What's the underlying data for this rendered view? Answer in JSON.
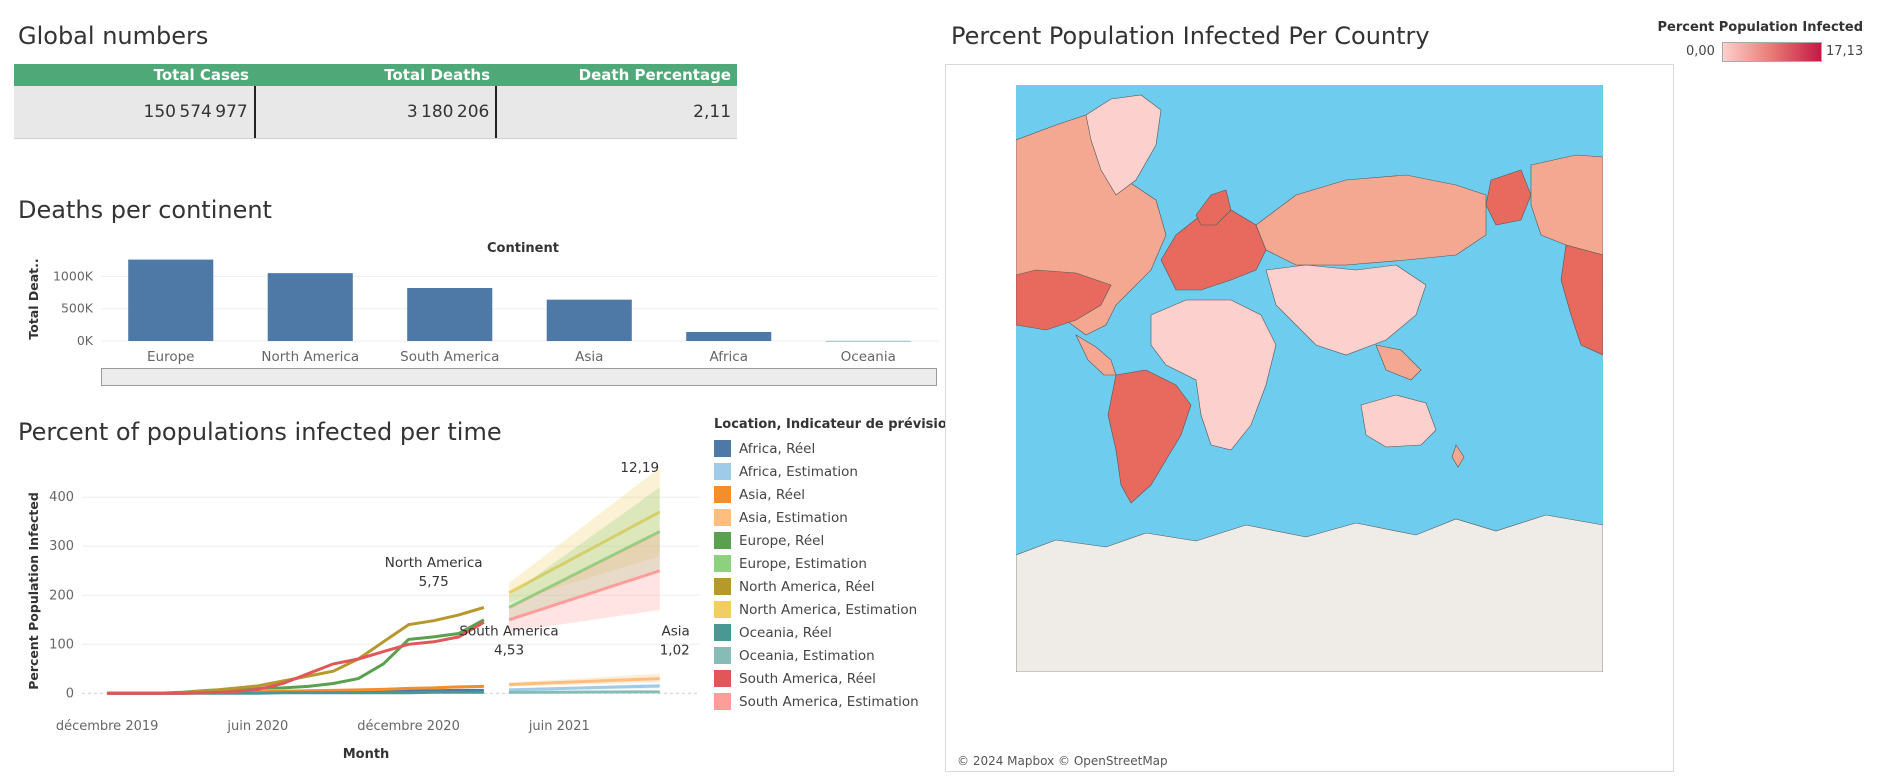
{
  "global": {
    "title": "Global numbers",
    "columns": [
      "Total Cases",
      "Total Deaths",
      "Death Percentage"
    ],
    "values": [
      "150 574 977",
      "3 180 206",
      "2,11"
    ]
  },
  "deaths_panel": {
    "title": "Deaths per continent",
    "header": "Continent",
    "y_label": "Total Deat.."
  },
  "time_panel": {
    "title": "Percent of populations infected per time",
    "y_label": "Percent Population Infected",
    "x_label": "Month",
    "annotations": [
      {
        "name": "North America",
        "value": "12,19"
      },
      {
        "name": "North America",
        "value": "5,75"
      },
      {
        "name": "South America",
        "value": "4,53"
      },
      {
        "name": "Asia",
        "value": "1,02"
      }
    ]
  },
  "legend": {
    "title": "Location, Indicateur de prévisions",
    "items": [
      {
        "label": "Africa, Réel",
        "color": "#4e79a7"
      },
      {
        "label": "Africa, Estimation",
        "color": "#a0cbe8"
      },
      {
        "label": "Asia, Réel",
        "color": "#f28e2b"
      },
      {
        "label": "Asia, Estimation",
        "color": "#ffbe7d"
      },
      {
        "label": "Europe, Réel",
        "color": "#59a14f"
      },
      {
        "label": "Europe, Estimation",
        "color": "#8cd17d"
      },
      {
        "label": "North America, Réel",
        "color": "#b6992d"
      },
      {
        "label": "North America, Estimation",
        "color": "#f1ce63"
      },
      {
        "label": "Oceania, Réel",
        "color": "#499894"
      },
      {
        "label": "Oceania, Estimation",
        "color": "#86bcb6"
      },
      {
        "label": "South America, Réel",
        "color": "#e15759"
      },
      {
        "label": "South America, Estimation",
        "color": "#ff9d9a"
      }
    ]
  },
  "map_panel": {
    "title": "Percent Population Infected Per Country",
    "credit": "© 2024 Mapbox © OpenStreetMap",
    "legend_title": "Percent Population Infected",
    "legend_min": "0,00",
    "legend_max": "17,13",
    "colors": {
      "ocean": "#6ecdef",
      "land_low": "#fcd0cc",
      "land_mid": "#f4a892",
      "land_high": "#e8695e",
      "antarctica": "#efebe6"
    }
  },
  "chart_data": [
    {
      "type": "bar",
      "header": "Continent",
      "categories": [
        "Europe",
        "North America",
        "South America",
        "Asia",
        "Africa",
        "Oceania"
      ],
      "values": [
        1260000,
        1050000,
        820000,
        640000,
        140000,
        1000
      ],
      "ylabel": "Total Deat..",
      "yticks": [
        "0K",
        "500K",
        "1000K"
      ],
      "ylim": [
        0,
        1300000
      ],
      "color": "#4e79a7",
      "grid": true
    },
    {
      "type": "line",
      "xlabel": "Month",
      "ylabel": "Percent Population Infected",
      "xticks": [
        "décembre 2019",
        "juin 2020",
        "décembre 2020",
        "juin 2021"
      ],
      "yticks": [
        "0",
        "100",
        "200",
        "300",
        "400"
      ],
      "ylim": [
        -30,
        480
      ],
      "x_months": [
        "2019-12",
        "2020-01",
        "2020-02",
        "2020-03",
        "2020-04",
        "2020-05",
        "2020-06",
        "2020-07",
        "2020-08",
        "2020-09",
        "2020-10",
        "2020-11",
        "2020-12",
        "2021-01",
        "2021-02",
        "2021-03"
      ],
      "real_series": [
        {
          "name": "Africa, Réel",
          "values": [
            0,
            0,
            0,
            0,
            1,
            1,
            2,
            2,
            3,
            3,
            4,
            4,
            5,
            5,
            6,
            6
          ]
        },
        {
          "name": "Asia, Réel",
          "values": [
            0,
            0,
            0,
            1,
            1,
            2,
            3,
            4,
            5,
            6,
            7,
            8,
            10,
            11,
            13,
            14
          ]
        },
        {
          "name": "Europe, Réel",
          "values": [
            0,
            0,
            0,
            2,
            6,
            8,
            10,
            11,
            14,
            20,
            30,
            60,
            110,
            115,
            122,
            150
          ]
        },
        {
          "name": "North America, Réel",
          "values": [
            0,
            0,
            0,
            1,
            5,
            10,
            15,
            25,
            35,
            45,
            70,
            105,
            140,
            148,
            160,
            175
          ]
        },
        {
          "name": "Oceania, Réel",
          "values": [
            0,
            0,
            0,
            0,
            0,
            0,
            0,
            1,
            1,
            1,
            1,
            1,
            1,
            2,
            2,
            2
          ]
        },
        {
          "name": "South America, Réel",
          "values": [
            0,
            0,
            0,
            0,
            1,
            3,
            8,
            20,
            40,
            60,
            70,
            85,
            100,
            105,
            115,
            145
          ]
        }
      ],
      "forecast_months": [
        "2021-04",
        "2021-10"
      ],
      "forecast_series": [
        {
          "name": "North America, Estimation",
          "start": 205,
          "end": 370,
          "band_start": [
            185,
            225
          ],
          "band_end": [
            280,
            460
          ]
        },
        {
          "name": "Europe, Estimation",
          "start": 175,
          "end": 330,
          "band_start": [
            150,
            200
          ],
          "band_end": [
            250,
            420
          ]
        },
        {
          "name": "South America, Estimation",
          "start": 150,
          "end": 250,
          "band_start": [
            125,
            175
          ],
          "band_end": [
            170,
            330
          ]
        },
        {
          "name": "Asia, Estimation",
          "start": 18,
          "end": 30,
          "band_start": [
            14,
            22
          ],
          "band_end": [
            22,
            40
          ]
        },
        {
          "name": "Africa, Estimation",
          "start": 7,
          "end": 15,
          "band_start": [
            5,
            9
          ],
          "band_end": [
            10,
            20
          ]
        },
        {
          "name": "Oceania, Estimation",
          "start": 2,
          "end": 3,
          "band_start": [
            1,
            3
          ],
          "band_end": [
            1,
            5
          ]
        }
      ]
    }
  ]
}
